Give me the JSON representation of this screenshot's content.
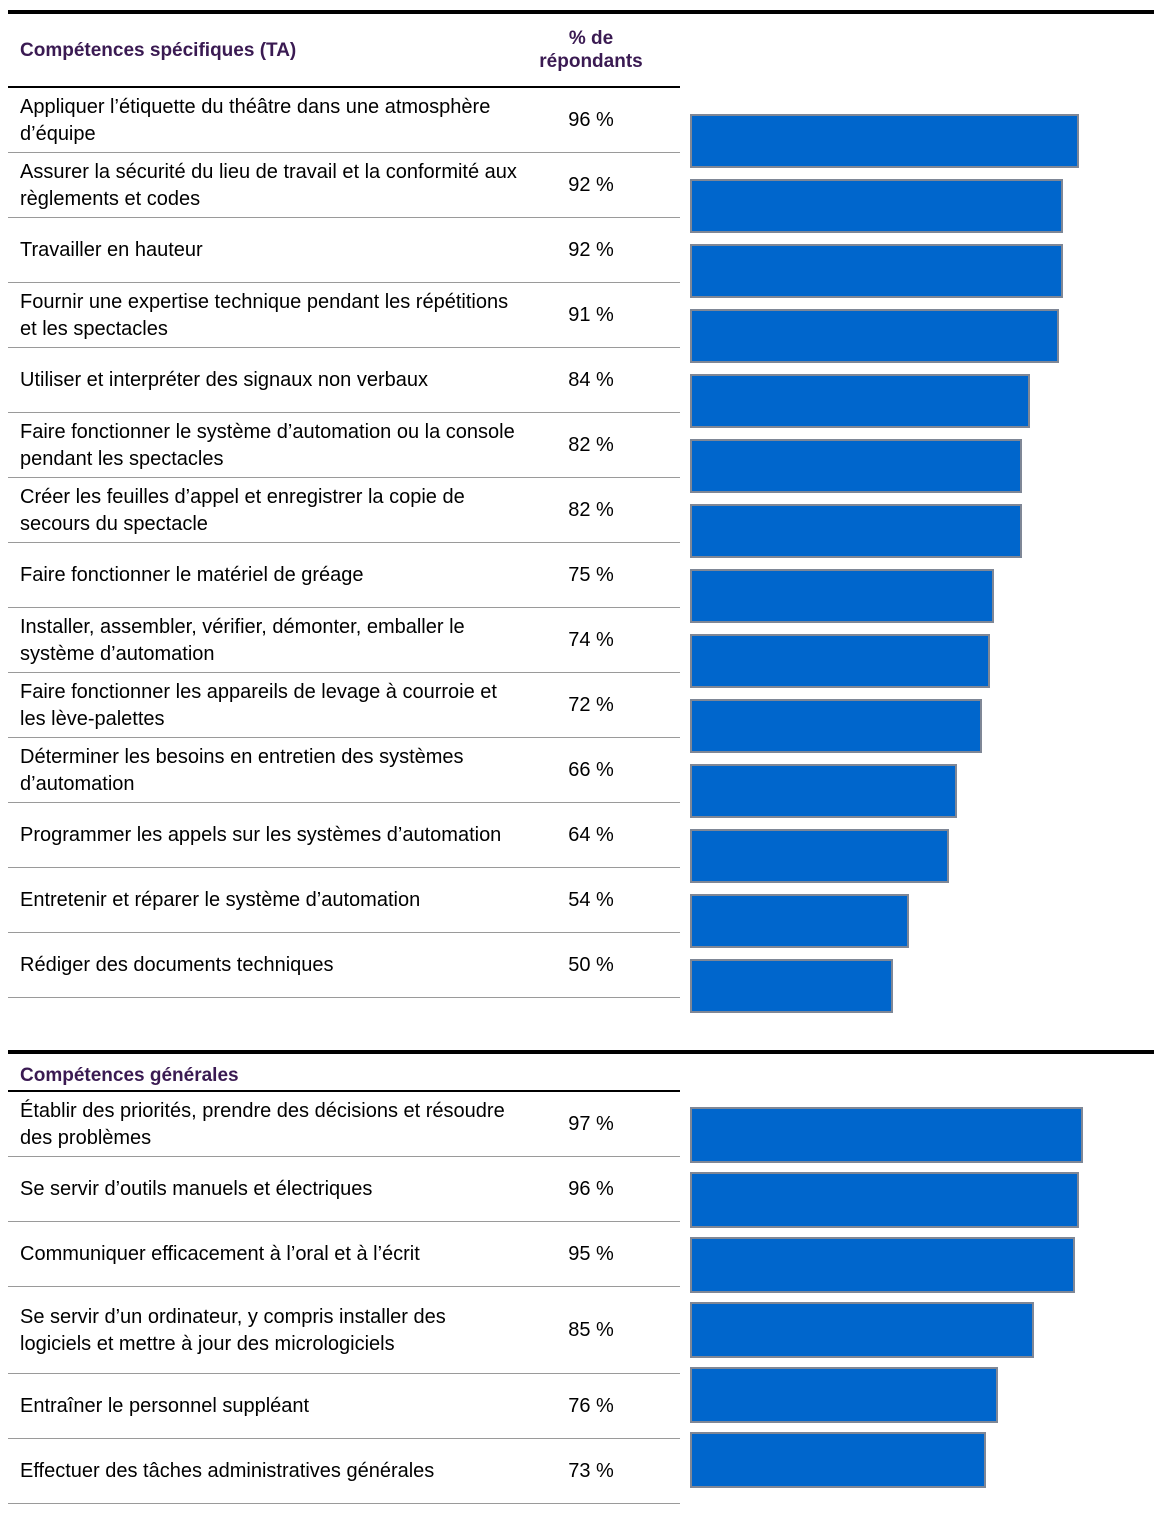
{
  "chart_data": [
    {
      "type": "bar",
      "orientation": "horizontal",
      "header_label": "Compétences spécifiques (TA)",
      "header_pct": "% de répondants",
      "bar_color": "#0066cc",
      "bar_border_color": "#7f8796",
      "xlim": [
        0,
        100
      ],
      "categories": [
        "Appliquer l’étiquette du théâtre dans une atmosphère d’équipe",
        "Assurer la sécurité du lieu de travail et la conformité aux règlements et codes",
        "Travailler en hauteur",
        "Fournir une expertise technique pendant les répétitions et les spectacles",
        "Utiliser et interpréter des signaux non verbaux",
        "Faire fonctionner le système d’automation ou la console pendant les spectacles",
        "Créer les feuilles d’appel et enregistrer la copie de secours du spectacle",
        "Faire fonctionner le matériel de gréage",
        "Installer, assembler, vérifier, démonter, emballer le système d’automation",
        "Faire fonctionner les appareils de levage à courroie et les lève-palettes",
        "Déterminer les besoins en entretien des systèmes d’automation",
        "Programmer les appels sur les systèmes d’automation",
        "Entretenir et réparer le système d’automation",
        "Rédiger des documents techniques"
      ],
      "values": [
        96,
        92,
        92,
        91,
        84,
        82,
        82,
        75,
        74,
        72,
        66,
        64,
        54,
        50
      ],
      "value_labels": [
        "96 %",
        "92 %",
        "92 %",
        "91 %",
        "84 %",
        "82 %",
        "82 %",
        "75 %",
        "74 %",
        "72 %",
        "66 %",
        "64 %",
        "54 %",
        "50 %"
      ]
    },
    {
      "type": "bar",
      "orientation": "horizontal",
      "header_label": "Compétences générales",
      "bar_color": "#0066cc",
      "bar_border_color": "#7f8796",
      "xlim": [
        0,
        100
      ],
      "categories": [
        "Établir des priorités, prendre des décisions et résoudre des problèmes",
        "Se servir d’outils manuels et électriques",
        "Communiquer efficacement à l’oral et à l’écrit",
        "Se servir d’un ordinateur, y compris installer des logiciels et mettre à jour des micrologiciels",
        "Entraîner le personnel suppléant",
        "Effectuer des tâches administratives générales"
      ],
      "values": [
        97,
        96,
        95,
        85,
        76,
        73
      ],
      "value_labels": [
        "97 %",
        "96 %",
        "95 %",
        "85 %",
        "76 %",
        "73 %"
      ]
    }
  ]
}
